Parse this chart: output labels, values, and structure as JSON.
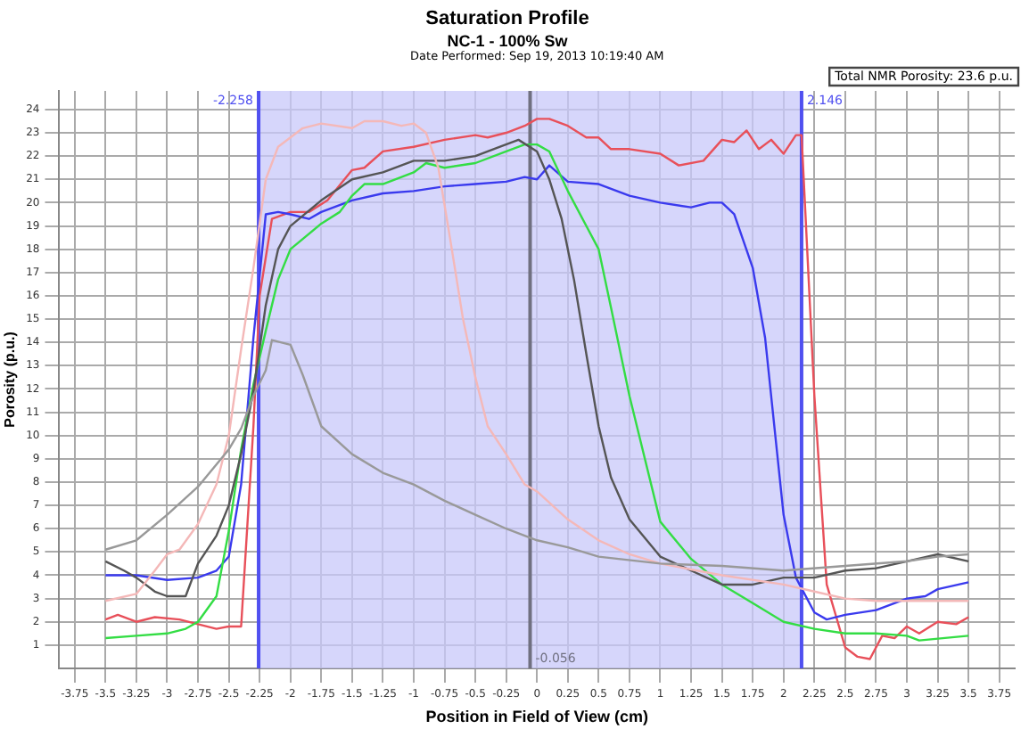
{
  "chart_data": {
    "type": "line",
    "title": "Saturation Profile",
    "subtitle": "NC-1 - 100% Sw",
    "xlabel": "Position in Field of View (cm)",
    "ylabel": "Porosity (p.u.)",
    "annotations": [
      "Date Performed: Sep 19, 2013 10:19:40 AM",
      "Total NMR Porosity: 23.6 p.u."
    ],
    "xlim": [
      -3.875,
      3.875
    ],
    "xticks": [
      -3.75,
      -3.5,
      -3.25,
      -3,
      -2.75,
      -2.5,
      -2.25,
      -2,
      -1.75,
      -1.5,
      -1.25,
      -1,
      -0.75,
      -0.5,
      -0.25,
      0,
      0.25,
      0.5,
      0.75,
      1,
      1.25,
      1.5,
      1.75,
      2,
      2.25,
      2.5,
      2.75,
      3,
      3.25,
      3.5,
      3.75
    ],
    "ylim": [
      0,
      24.8
    ],
    "yticks": [
      1,
      2,
      3,
      4,
      5,
      6,
      7,
      8,
      9,
      10,
      11,
      12,
      13,
      14,
      15,
      16,
      17,
      18,
      19,
      20,
      21,
      22,
      23,
      24
    ],
    "grid": true,
    "legend": false,
    "marker": "none",
    "line_style": "solid",
    "bands": [
      {
        "axis": "x",
        "from": -2.258,
        "to": 2.146,
        "color": "#c8c8fa"
      }
    ],
    "ref_lines": [
      {
        "axis": "x",
        "value": -2.258,
        "label": "-2.258",
        "color": "#5050f0"
      },
      {
        "axis": "x",
        "value": 2.146,
        "label": "2.146",
        "color": "#5050f0"
      },
      {
        "axis": "x",
        "value": -0.056,
        "label": "-0.056",
        "color": "#707080"
      }
    ],
    "series": [
      {
        "color": "#999999",
        "x": [
          -3.5,
          -3.25,
          -3,
          -2.75,
          -2.5,
          -2.4,
          -2.3,
          -2.2,
          -2.15,
          -2,
          -1.9,
          -1.75,
          -1.5,
          -1.25,
          -1,
          -0.75,
          -0.5,
          -0.25,
          0,
          0.25,
          0.5,
          1,
          1.5,
          2,
          2.5,
          3,
          3.25,
          3.5
        ],
        "values": [
          5.1,
          5.5,
          6.6,
          7.8,
          9.4,
          10.3,
          11.7,
          12.8,
          14.1,
          13.9,
          12.6,
          10.4,
          9.2,
          8.4,
          7.9,
          7.2,
          6.6,
          6,
          5.5,
          5.2,
          4.8,
          4.5,
          4.4,
          4.2,
          4.4,
          4.6,
          4.8,
          4.9
        ]
      },
      {
        "color": "#f4b8b8",
        "x": [
          -3.5,
          -3.25,
          -3.1,
          -3,
          -2.9,
          -2.75,
          -2.6,
          -2.5,
          -2.4,
          -2.3,
          -2.2,
          -2.1,
          -1.9,
          -1.75,
          -1.5,
          -1.4,
          -1.25,
          -1.1,
          -1,
          -0.9,
          -0.8,
          -0.7,
          -0.6,
          -0.5,
          -0.4,
          -0.25,
          -0.1,
          0,
          0.25,
          0.5,
          0.75,
          1,
          1.5,
          2,
          2.25,
          2.5,
          2.75,
          3,
          3.5
        ],
        "values": [
          2.9,
          3.2,
          4.2,
          4.9,
          5.1,
          6.2,
          7.9,
          10,
          13.7,
          17.2,
          21,
          22.4,
          23.2,
          23.4,
          23.2,
          23.5,
          23.5,
          23.3,
          23.4,
          23,
          21.5,
          18.3,
          15,
          12.5,
          10.4,
          9.2,
          7.9,
          7.6,
          6.4,
          5.5,
          4.9,
          4.5,
          4,
          3.6,
          3.3,
          3,
          2.9,
          2.9,
          2.9
        ]
      },
      {
        "color": "#555555",
        "x": [
          -3.5,
          -3.35,
          -3.25,
          -3.1,
          -3,
          -2.85,
          -2.75,
          -2.6,
          -2.5,
          -2.4,
          -2.3,
          -2.2,
          -2.1,
          -2,
          -1.75,
          -1.5,
          -1.25,
          -1,
          -0.75,
          -0.5,
          -0.3,
          -0.15,
          0,
          0.1,
          0.2,
          0.3,
          0.4,
          0.5,
          0.6,
          0.75,
          1,
          1.25,
          1.5,
          1.75,
          2,
          2.25,
          2.5,
          2.75,
          3,
          3.25,
          3.5
        ],
        "values": [
          4.6,
          4.2,
          3.9,
          3.3,
          3.1,
          3.1,
          4.5,
          5.7,
          7,
          9.2,
          11.9,
          15.6,
          18,
          19,
          20.1,
          21,
          21.3,
          21.8,
          21.8,
          22,
          22.4,
          22.7,
          22.2,
          21,
          19.3,
          16.7,
          13.5,
          10.4,
          8.2,
          6.4,
          4.8,
          4.2,
          3.6,
          3.6,
          3.9,
          3.9,
          4.2,
          4.3,
          4.6,
          4.9,
          4.6
        ]
      },
      {
        "color": "#33dd44",
        "x": [
          -3.5,
          -3.25,
          -3,
          -2.85,
          -2.75,
          -2.6,
          -2.5,
          -2.4,
          -2.3,
          -2.2,
          -2.1,
          -2,
          -1.75,
          -1.6,
          -1.5,
          -1.4,
          -1.25,
          -1,
          -0.9,
          -0.75,
          -0.5,
          -0.25,
          -0.1,
          0,
          0.1,
          0.25,
          0.5,
          0.6,
          0.75,
          1,
          1.25,
          1.5,
          1.75,
          2,
          2.25,
          2.5,
          2.75,
          3,
          3.1,
          3.5
        ],
        "values": [
          1.3,
          1.4,
          1.5,
          1.7,
          2,
          3.1,
          5.9,
          9.4,
          12.2,
          14.5,
          16.7,
          18,
          19.1,
          19.6,
          20.3,
          20.8,
          20.8,
          21.3,
          21.7,
          21.5,
          21.7,
          22.2,
          22.5,
          22.5,
          22.2,
          20.5,
          18,
          15.5,
          11.7,
          6.3,
          4.7,
          3.6,
          2.8,
          2,
          1.7,
          1.5,
          1.5,
          1.4,
          1.2,
          1.4
        ]
      },
      {
        "color": "#3a3aee",
        "x": [
          -3.5,
          -3.25,
          -3,
          -2.75,
          -2.6,
          -2.5,
          -2.4,
          -2.3,
          -2.2,
          -2.1,
          -2,
          -1.85,
          -1.75,
          -1.5,
          -1.25,
          -1,
          -0.75,
          -0.5,
          -0.25,
          -0.1,
          0,
          0.1,
          0.25,
          0.5,
          0.75,
          1,
          1.25,
          1.4,
          1.5,
          1.6,
          1.75,
          1.85,
          2,
          2.1,
          2.25,
          2.35,
          2.5,
          2.75,
          3,
          3.15,
          3.25,
          3.5
        ],
        "values": [
          4,
          4,
          3.8,
          3.9,
          4.2,
          4.8,
          7.9,
          14.2,
          19.5,
          19.6,
          19.5,
          19.3,
          19.6,
          20.1,
          20.4,
          20.5,
          20.7,
          20.8,
          20.9,
          21.1,
          21,
          21.6,
          20.9,
          20.8,
          20.3,
          20,
          19.8,
          20,
          20,
          19.5,
          17.2,
          14.2,
          6.6,
          3.9,
          2.4,
          2.1,
          2.3,
          2.5,
          3,
          3.1,
          3.4,
          3.7
        ]
      },
      {
        "color": "#e8505a",
        "x": [
          -3.5,
          -3.4,
          -3.25,
          -3.1,
          -2.9,
          -2.75,
          -2.6,
          -2.5,
          -2.4,
          -2.3,
          -2.25,
          -2.15,
          -2,
          -1.85,
          -1.7,
          -1.5,
          -1.4,
          -1.25,
          -1,
          -0.75,
          -0.5,
          -0.4,
          -0.25,
          -0.1,
          0,
          0.1,
          0.25,
          0.4,
          0.5,
          0.6,
          0.75,
          1,
          1.15,
          1.35,
          1.5,
          1.6,
          1.7,
          1.8,
          1.9,
          2,
          2.1,
          2.146,
          2.25,
          2.35,
          2.5,
          2.6,
          2.7,
          2.8,
          2.9,
          3,
          3.1,
          3.25,
          3.4,
          3.5
        ],
        "values": [
          2.1,
          2.3,
          2,
          2.2,
          2.1,
          1.9,
          1.7,
          1.8,
          1.8,
          10.4,
          16,
          19.3,
          19.6,
          19.6,
          20.1,
          21.4,
          21.5,
          22.2,
          22.4,
          22.7,
          22.9,
          22.8,
          23,
          23.3,
          23.6,
          23.6,
          23.3,
          22.8,
          22.8,
          22.3,
          22.3,
          22.1,
          21.6,
          21.8,
          22.7,
          22.6,
          23.1,
          22.3,
          22.7,
          22.1,
          22.9,
          22.9,
          11.7,
          3.6,
          0.9,
          0.5,
          0.4,
          1.4,
          1.3,
          1.8,
          1.5,
          2,
          1.9,
          2.2
        ]
      }
    ]
  }
}
